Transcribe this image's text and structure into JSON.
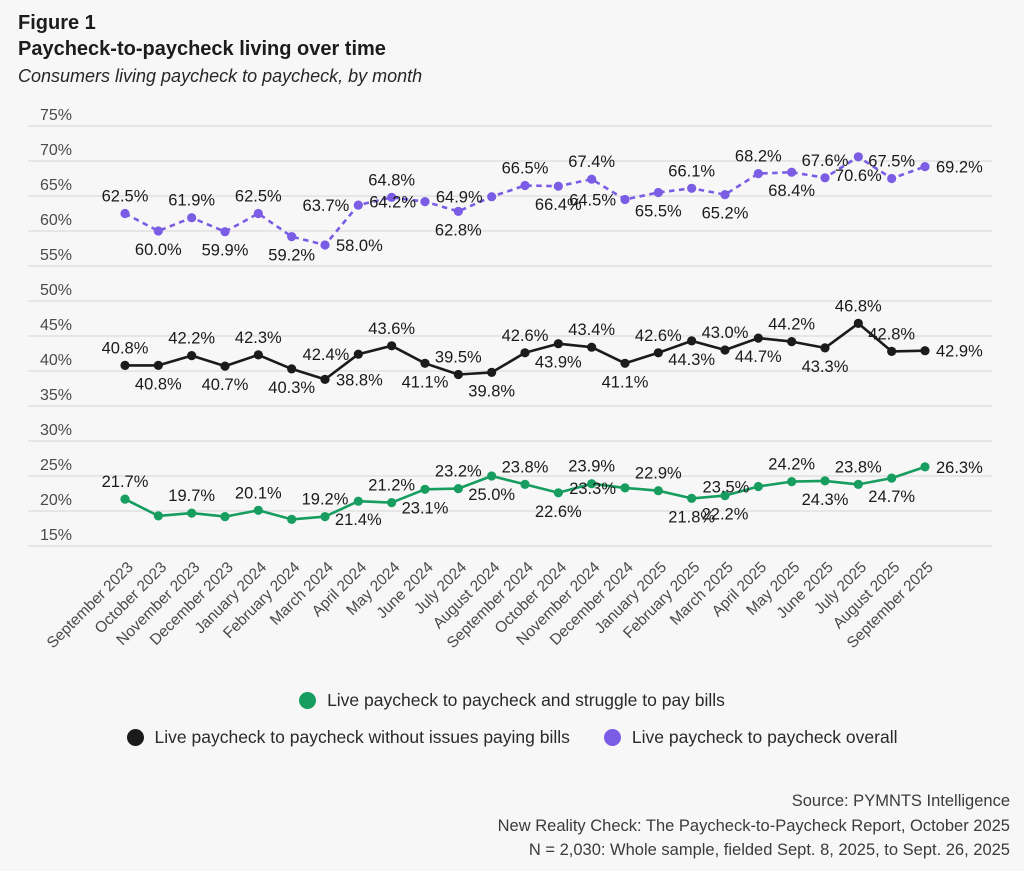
{
  "chart_data": {
    "type": "line",
    "figure_label": "Figure 1",
    "title": "Paycheck-to-paycheck living over time",
    "subtitle": "Consumers living paycheck to paycheck, by month",
    "x_categories": [
      "September 2023",
      "October 2023",
      "November 2023",
      "December 2023",
      "January 2024",
      "February 2024",
      "March 2024",
      "April 2024",
      "May 2024",
      "June 2024",
      "July 2024",
      "August 2024",
      "September 2024",
      "October 2024",
      "November 2024",
      "December 2024",
      "January 2025",
      "February 2025",
      "March 2025",
      "April 2025",
      "May 2025",
      "June 2025",
      "July 2025",
      "August 2025",
      "September 2025"
    ],
    "y_ticks": [
      "75%",
      "70%",
      "65%",
      "60%",
      "55%",
      "50%",
      "45%",
      "40%",
      "35%",
      "30%",
      "25%",
      "20%",
      "15%"
    ],
    "ylim": [
      15,
      75
    ],
    "grid": true,
    "legend_position": "bottom",
    "data_label_color": "#1a1a1a",
    "series": [
      {
        "name": "Live paycheck to paycheck and struggle to pay bills",
        "color": "#179d5f",
        "line_style": "solid",
        "values": [
          21.7,
          19.3,
          19.7,
          19.2,
          20.1,
          18.8,
          19.2,
          21.4,
          21.2,
          23.1,
          23.2,
          25.0,
          23.8,
          22.6,
          23.9,
          23.3,
          22.9,
          21.8,
          22.2,
          23.5,
          24.2,
          24.3,
          23.8,
          24.7,
          26.3
        ],
        "labels": [
          "21.7%",
          "",
          "19.7%",
          "",
          "20.1%",
          "",
          "19.2%",
          "21.4%",
          "21.2%",
          "23.1%",
          "23.2%",
          "25.0%",
          "23.8%",
          "22.6%",
          "23.9%",
          "23.3%",
          "22.9%",
          "21.8%",
          "22.2%",
          "23.5%",
          "24.2%",
          "24.3%",
          "23.8%",
          "24.7%",
          "26.3%"
        ],
        "label_pos": [
          "above",
          "none",
          "above",
          "none",
          "above",
          "none",
          "above",
          "below",
          "above",
          "below",
          "above",
          "below",
          "above",
          "below",
          "above",
          "left",
          "above",
          "below",
          "below",
          "left",
          "above",
          "below",
          "above",
          "below",
          "right"
        ]
      },
      {
        "name": "Live paycheck to paycheck without issues paying bills",
        "color": "#1b1b1b",
        "line_style": "solid",
        "values": [
          40.8,
          40.8,
          42.2,
          40.7,
          42.3,
          40.3,
          38.8,
          42.4,
          43.6,
          41.1,
          39.5,
          39.8,
          42.6,
          43.9,
          43.4,
          41.1,
          42.6,
          44.3,
          43.0,
          44.7,
          44.2,
          43.3,
          46.8,
          42.8,
          42.9
        ],
        "labels": [
          "40.8%",
          "40.8%",
          "42.2%",
          "40.7%",
          "42.3%",
          "40.3%",
          "38.8%",
          "42.4%",
          "43.6%",
          "41.1%",
          "39.5%",
          "39.8%",
          "42.6%",
          "43.9%",
          "43.4%",
          "41.1%",
          "42.6%",
          "44.3%",
          "43.0%",
          "44.7%",
          "44.2%",
          "43.3%",
          "46.8%",
          "42.8%",
          "42.9%"
        ],
        "label_pos": [
          "above",
          "below",
          "above",
          "below",
          "above",
          "below",
          "right",
          "left",
          "above",
          "below",
          "above",
          "below",
          "above",
          "below",
          "above",
          "below",
          "above",
          "below",
          "above",
          "below",
          "above",
          "below",
          "above",
          "above",
          "right"
        ]
      },
      {
        "name": "Live paycheck to paycheck overall",
        "color": "#7a5ce5",
        "line_style": "dashed",
        "values": [
          62.5,
          60.0,
          61.9,
          59.9,
          62.5,
          59.2,
          58.0,
          63.7,
          64.8,
          64.2,
          62.8,
          64.9,
          66.5,
          66.4,
          67.4,
          64.5,
          65.5,
          66.1,
          65.2,
          68.2,
          68.4,
          67.6,
          70.6,
          67.5,
          69.2
        ],
        "labels": [
          "62.5%",
          "60.0%",
          "61.9%",
          "59.9%",
          "62.5%",
          "59.2%",
          "58.0%",
          "63.7%",
          "64.8%",
          "64.2%",
          "62.8%",
          "64.9%",
          "66.5%",
          "66.4%",
          "67.4%",
          "64.5%",
          "65.5%",
          "66.1%",
          "65.2%",
          "68.2%",
          "68.4%",
          "67.6%",
          "70.6%",
          "67.5%",
          "69.2%"
        ],
        "label_pos": [
          "above",
          "below",
          "above",
          "below",
          "above",
          "below",
          "right",
          "left",
          "above",
          "left",
          "below",
          "left",
          "above",
          "below",
          "above",
          "left",
          "below",
          "above",
          "below",
          "above",
          "below",
          "above",
          "below",
          "above",
          "right"
        ]
      }
    ]
  },
  "footer": {
    "lines": [
      "Source: PYMNTS Intelligence",
      "New Reality Check: The Paycheck-to-Paycheck Report, October 2025",
      "N = 2,030: Whole sample, fielded Sept. 8, 2025, to Sept. 26, 2025"
    ]
  }
}
